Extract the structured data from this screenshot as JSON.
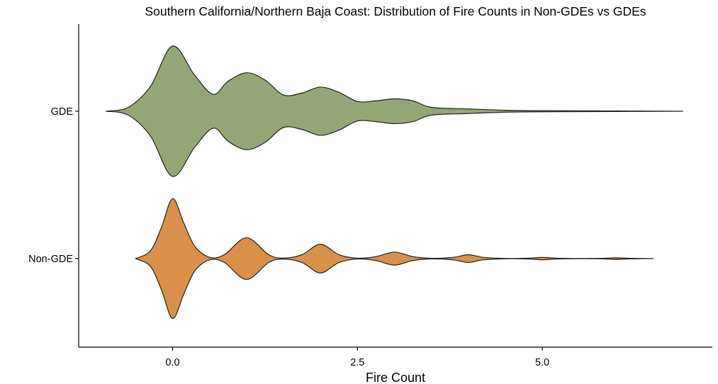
{
  "chart_data": {
    "type": "violin",
    "title": "Southern California/Northern Baja Coast: Distribution of Fire Counts in Non-GDEs vs GDEs",
    "xlabel": "Fire Count",
    "ylabel": "",
    "x_ticks": [
      0.0,
      2.5,
      5.0
    ],
    "x_tick_labels": [
      "0.0",
      "2.5",
      "5.0"
    ],
    "xlim": [
      -1.27,
      7.3
    ],
    "categories": [
      "GDE",
      "Non-GDE"
    ],
    "grid": false,
    "legend": "none",
    "series": [
      {
        "category": "GDE",
        "color": "#95a676",
        "density": [
          [
            -0.9,
            0.0
          ],
          [
            -0.6,
            0.06
          ],
          [
            -0.3,
            0.38
          ],
          [
            0.0,
            1.0
          ],
          [
            0.3,
            0.55
          ],
          [
            0.55,
            0.26
          ],
          [
            0.75,
            0.46
          ],
          [
            1.0,
            0.59
          ],
          [
            1.25,
            0.48
          ],
          [
            1.5,
            0.25
          ],
          [
            1.75,
            0.28
          ],
          [
            2.0,
            0.37
          ],
          [
            2.25,
            0.29
          ],
          [
            2.5,
            0.15
          ],
          [
            2.75,
            0.16
          ],
          [
            3.0,
            0.19
          ],
          [
            3.25,
            0.16
          ],
          [
            3.5,
            0.06
          ],
          [
            4.0,
            0.035
          ],
          [
            4.5,
            0.015
          ],
          [
            5.0,
            0.008
          ],
          [
            6.0,
            0.004
          ],
          [
            6.9,
            0.0
          ]
        ]
      },
      {
        "category": "Non-GDE",
        "color": "#d8904b",
        "density": [
          [
            -0.5,
            0.0
          ],
          [
            -0.3,
            0.12
          ],
          [
            -0.15,
            0.48
          ],
          [
            0.0,
            0.92
          ],
          [
            0.15,
            0.55
          ],
          [
            0.3,
            0.19
          ],
          [
            0.5,
            0.02
          ],
          [
            0.7,
            0.06
          ],
          [
            1.0,
            0.32
          ],
          [
            1.3,
            0.06
          ],
          [
            1.5,
            0.008
          ],
          [
            1.75,
            0.06
          ],
          [
            2.0,
            0.22
          ],
          [
            2.25,
            0.06
          ],
          [
            2.5,
            0.006
          ],
          [
            2.75,
            0.03
          ],
          [
            3.0,
            0.1
          ],
          [
            3.25,
            0.03
          ],
          [
            3.5,
            0.004
          ],
          [
            3.8,
            0.02
          ],
          [
            4.0,
            0.06
          ],
          [
            4.2,
            0.02
          ],
          [
            4.5,
            0.003
          ],
          [
            4.8,
            0.006
          ],
          [
            5.0,
            0.018
          ],
          [
            5.2,
            0.006
          ],
          [
            5.5,
            0.002
          ],
          [
            5.8,
            0.004
          ],
          [
            6.0,
            0.012
          ],
          [
            6.2,
            0.004
          ],
          [
            6.5,
            0.0
          ]
        ]
      }
    ]
  }
}
